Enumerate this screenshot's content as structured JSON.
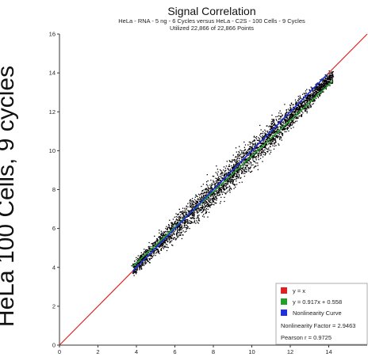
{
  "side_label": "HeLa 100 Cells, 9 cycles",
  "chart_data": {
    "type": "scatter",
    "title": "Signal Correlation",
    "subtitle_line1": "HeLa - RNA - 5 ng - 6 Cycles versus HeLa - C2S - 100 Cells - 9 Cycles",
    "subtitle_line2": "Utilized 22,866 of 22,866 Points",
    "xlabel": "",
    "ylabel": "",
    "xlim": [
      0,
      16
    ],
    "ylim": [
      0,
      16
    ],
    "x_ticks": [
      "0",
      "2",
      "4",
      "6",
      "8",
      "10",
      "12",
      "14"
    ],
    "y_ticks": [
      "0",
      "2",
      "4",
      "6",
      "8",
      "10",
      "12",
      "14",
      "16"
    ],
    "grid": false,
    "point_count": 22866,
    "point_cloud": {
      "x_range": [
        3.8,
        14.2
      ],
      "approx_spread": 0.45
    },
    "series": [
      {
        "name": "y = x",
        "color": "#e02020",
        "slope": 1.0,
        "intercept": 0.0,
        "x_range": [
          0,
          16
        ]
      },
      {
        "name": "y = 0.917x + 0.558",
        "color": "#22a02a",
        "slope": 0.917,
        "intercept": 0.558,
        "x_range": [
          3.8,
          14.2
        ]
      },
      {
        "name": "Nonlinearity Curve",
        "color": "#2030e0",
        "slope": 1.0,
        "intercept": 0.0,
        "x_range": [
          3.8,
          13.9
        ]
      }
    ],
    "legend": {
      "placement": "bottom-right",
      "entries": [
        {
          "label": "y = x",
          "color": "#e02020"
        },
        {
          "label": "y = 0.917x + 0.558",
          "color": "#22a02a"
        },
        {
          "label": "Nonlinearity Curve",
          "color": "#2030e0"
        }
      ],
      "notes": [
        "Nonlinearity Factor = 2.9463",
        "Pearson r = 0.9725"
      ]
    }
  }
}
